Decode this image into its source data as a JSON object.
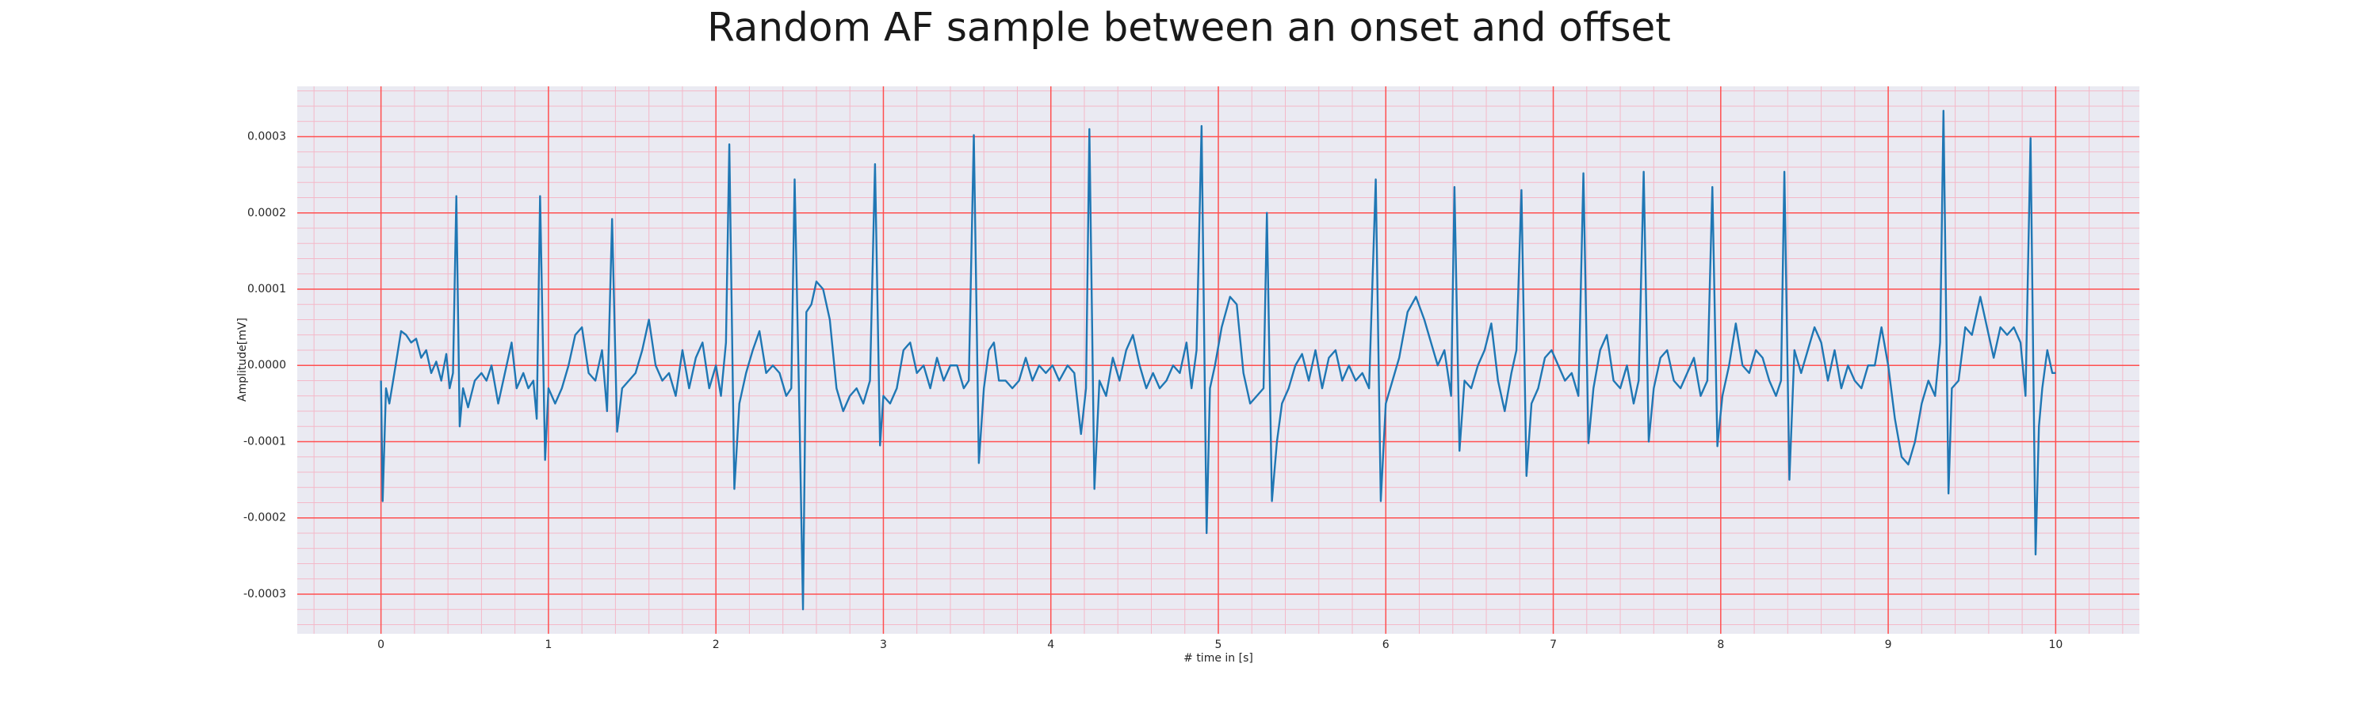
{
  "chart_data": {
    "type": "line",
    "title": "Random AF sample between an onset and offset",
    "xlabel": "# time in [s]",
    "ylabel": "Amplitude[mV]",
    "color": "#1f77b4",
    "background": "#eaeaf2",
    "grid": true,
    "grid_color": "#ff5050",
    "minor_grid_color": "#f4b8c8",
    "minor_grid_divisions": 5,
    "xlim": [
      -0.5,
      10.5
    ],
    "ylim": [
      -0.000352,
      0.000366
    ],
    "xticks": [
      0,
      1,
      2,
      3,
      4,
      5,
      6,
      7,
      8,
      9,
      10
    ],
    "yticks": [
      -0.0003,
      -0.0002,
      -0.0001,
      {
        "value": 0,
        "label": "0.0000"
      },
      0.0001,
      0.0002,
      0.0003
    ],
    "x": [
      0,
      0.01,
      0.03,
      0.05,
      0.08,
      0.12,
      0.15,
      0.18,
      0.21,
      0.24,
      0.27,
      0.3,
      0.33,
      0.36,
      0.39,
      0.41,
      0.43,
      0.45,
      0.47,
      0.49,
      0.52,
      0.56,
      0.6,
      0.63,
      0.66,
      0.7,
      0.74,
      0.78,
      0.81,
      0.85,
      0.88,
      0.91,
      0.93,
      0.95,
      0.98,
      1.0,
      1.04,
      1.08,
      1.12,
      1.16,
      1.2,
      1.24,
      1.28,
      1.32,
      1.35,
      1.38,
      1.41,
      1.44,
      1.48,
      1.52,
      1.56,
      1.6,
      1.64,
      1.68,
      1.72,
      1.76,
      1.8,
      1.84,
      1.88,
      1.92,
      1.96,
      2.0,
      2.03,
      2.06,
      2.08,
      2.11,
      2.14,
      2.18,
      2.22,
      2.26,
      2.3,
      2.34,
      2.38,
      2.42,
      2.45,
      2.47,
      2.5,
      2.52,
      2.54,
      2.57,
      2.6,
      2.64,
      2.68,
      2.72,
      2.76,
      2.8,
      2.84,
      2.88,
      2.92,
      2.95,
      2.98,
      3.0,
      3.04,
      3.08,
      3.12,
      3.16,
      3.2,
      3.24,
      3.28,
      3.32,
      3.36,
      3.4,
      3.44,
      3.48,
      3.51,
      3.54,
      3.57,
      3.6,
      3.63,
      3.66,
      3.69,
      3.73,
      3.77,
      3.81,
      3.85,
      3.89,
      3.93,
      3.97,
      4.01,
      4.05,
      4.1,
      4.14,
      4.18,
      4.21,
      4.23,
      4.26,
      4.29,
      4.33,
      4.37,
      4.41,
      4.45,
      4.49,
      4.53,
      4.57,
      4.61,
      4.65,
      4.69,
      4.73,
      4.77,
      4.81,
      4.84,
      4.87,
      4.9,
      4.93,
      4.95,
      4.98,
      5.02,
      5.07,
      5.11,
      5.15,
      5.19,
      5.23,
      5.27,
      5.29,
      5.32,
      5.35,
      5.38,
      5.42,
      5.46,
      5.5,
      5.54,
      5.58,
      5.62,
      5.66,
      5.7,
      5.74,
      5.78,
      5.82,
      5.86,
      5.9,
      5.94,
      5.97,
      6.0,
      6.04,
      6.08,
      6.13,
      6.18,
      6.23,
      6.27,
      6.31,
      6.35,
      6.39,
      6.41,
      6.44,
      6.47,
      6.51,
      6.55,
      6.59,
      6.63,
      6.67,
      6.71,
      6.75,
      6.78,
      6.81,
      6.84,
      6.87,
      6.91,
      6.95,
      6.99,
      7.03,
      7.07,
      7.11,
      7.15,
      7.18,
      7.21,
      7.24,
      7.28,
      7.32,
      7.36,
      7.4,
      7.44,
      7.48,
      7.51,
      7.54,
      7.57,
      7.6,
      7.64,
      7.68,
      7.72,
      7.76,
      7.8,
      7.84,
      7.88,
      7.92,
      7.95,
      7.98,
      8.01,
      8.05,
      8.09,
      8.13,
      8.17,
      8.21,
      8.25,
      8.29,
      8.33,
      8.36,
      8.38,
      8.41,
      8.44,
      8.48,
      8.52,
      8.56,
      8.6,
      8.64,
      8.68,
      8.72,
      8.76,
      8.8,
      8.84,
      8.88,
      8.92,
      8.96,
      9.0,
      9.04,
      9.08,
      9.12,
      9.16,
      9.2,
      9.24,
      9.28,
      9.31,
      9.33,
      9.36,
      9.38,
      9.42,
      9.46,
      9.5,
      9.55,
      9.59,
      9.63,
      9.67,
      9.71,
      9.75,
      9.79,
      9.82,
      9.85,
      9.88,
      9.9,
      9.92,
      9.95,
      9.98,
      10.0
    ],
    "values": [
      -2e-05,
      -0.000178,
      -3e-05,
      -5e-05,
      -1e-05,
      4.5e-05,
      4e-05,
      3e-05,
      3.5e-05,
      1e-05,
      2e-05,
      -1e-05,
      5e-06,
      -2e-05,
      1.5e-05,
      -3e-05,
      -1e-05,
      0.000222,
      -8e-05,
      -3e-05,
      -5.5e-05,
      -2e-05,
      -1e-05,
      -2e-05,
      0,
      -5e-05,
      -1e-05,
      3e-05,
      -3e-05,
      -1e-05,
      -3e-05,
      -2e-05,
      -7e-05,
      0.000222,
      -0.000124,
      -3e-05,
      -5e-05,
      -3e-05,
      0,
      4e-05,
      5e-05,
      -1e-05,
      -2e-05,
      2e-05,
      -6e-05,
      0.000192,
      -8.7e-05,
      -3e-05,
      -2e-05,
      -1e-05,
      2e-05,
      6e-05,
      0,
      -2e-05,
      -1e-05,
      -4e-05,
      2e-05,
      -3e-05,
      1e-05,
      3e-05,
      -3e-05,
      0,
      -4e-05,
      3e-05,
      0.00029,
      -0.000162,
      -5e-05,
      -1e-05,
      2e-05,
      4.5e-05,
      -1e-05,
      0,
      -1e-05,
      -4e-05,
      -3e-05,
      0.000244,
      -8e-05,
      -0.00032,
      7e-05,
      8e-05,
      0.00011,
      0.0001,
      6e-05,
      -3e-05,
      -6e-05,
      -4e-05,
      -3e-05,
      -5e-05,
      -2e-05,
      0.000264,
      -0.000105,
      -4e-05,
      -5e-05,
      -3e-05,
      2e-05,
      3e-05,
      -1e-05,
      0,
      -3e-05,
      1e-05,
      -2e-05,
      0,
      0,
      -3e-05,
      -2e-05,
      0.000302,
      -0.000128,
      -3e-05,
      2e-05,
      3e-05,
      -2e-05,
      -2e-05,
      -3e-05,
      -2e-05,
      1e-05,
      -2e-05,
      0,
      -1e-05,
      0,
      -2e-05,
      0,
      -1e-05,
      -9e-05,
      -3e-05,
      0.00031,
      -0.000162,
      -2e-05,
      -4e-05,
      1e-05,
      -2e-05,
      2e-05,
      4e-05,
      0,
      -3e-05,
      -1e-05,
      -3e-05,
      -2e-05,
      0,
      -1e-05,
      3e-05,
      -3e-05,
      2e-05,
      0.000314,
      -0.00022,
      -3e-05,
      0,
      5e-05,
      9e-05,
      8e-05,
      -1e-05,
      -5e-05,
      -4e-05,
      -3e-05,
      0.0002,
      -0.000178,
      -0.0001,
      -5e-05,
      -3e-05,
      0,
      1.5e-05,
      -2e-05,
      2e-05,
      -3e-05,
      1e-05,
      2e-05,
      -2e-05,
      0,
      -2e-05,
      -1e-05,
      -3e-05,
      0.000244,
      -0.000178,
      -5e-05,
      -2e-05,
      1e-05,
      7e-05,
      9e-05,
      6e-05,
      3e-05,
      0,
      2e-05,
      -4e-05,
      0.000234,
      -0.000112,
      -2e-05,
      -3e-05,
      0,
      2e-05,
      5.5e-05,
      -2e-05,
      -6e-05,
      -1e-05,
      2e-05,
      0.00023,
      -0.000145,
      -5e-05,
      -3e-05,
      1e-05,
      2e-05,
      0,
      -2e-05,
      -1e-05,
      -4e-05,
      0.000252,
      -0.000102,
      -3e-05,
      2e-05,
      4e-05,
      -2e-05,
      -3e-05,
      0,
      -5e-05,
      -2e-05,
      0.000254,
      -0.0001,
      -3e-05,
      1e-05,
      2e-05,
      -2e-05,
      -3e-05,
      -1e-05,
      1e-05,
      -4e-05,
      -2e-05,
      0.000234,
      -0.000106,
      -4e-05,
      0,
      5.5e-05,
      0,
      -1e-05,
      2e-05,
      1e-05,
      -2e-05,
      -4e-05,
      -2e-05,
      0.000254,
      -0.00015,
      2e-05,
      -1e-05,
      2e-05,
      5e-05,
      3e-05,
      -2e-05,
      2e-05,
      -3e-05,
      0,
      -2e-05,
      -3e-05,
      0,
      0,
      5e-05,
      0,
      -7e-05,
      -0.00012,
      -0.00013,
      -0.0001,
      -5e-05,
      -2e-05,
      -4e-05,
      3e-05,
      0.000334,
      -0.000168,
      -3e-05,
      -2e-05,
      5e-05,
      4e-05,
      9e-05,
      5e-05,
      1e-05,
      5e-05,
      4e-05,
      5e-05,
      3e-05,
      -4e-05,
      0.000298,
      -0.000248,
      -8e-05,
      -3e-05,
      2e-05,
      -1e-05,
      -1e-05
    ]
  }
}
